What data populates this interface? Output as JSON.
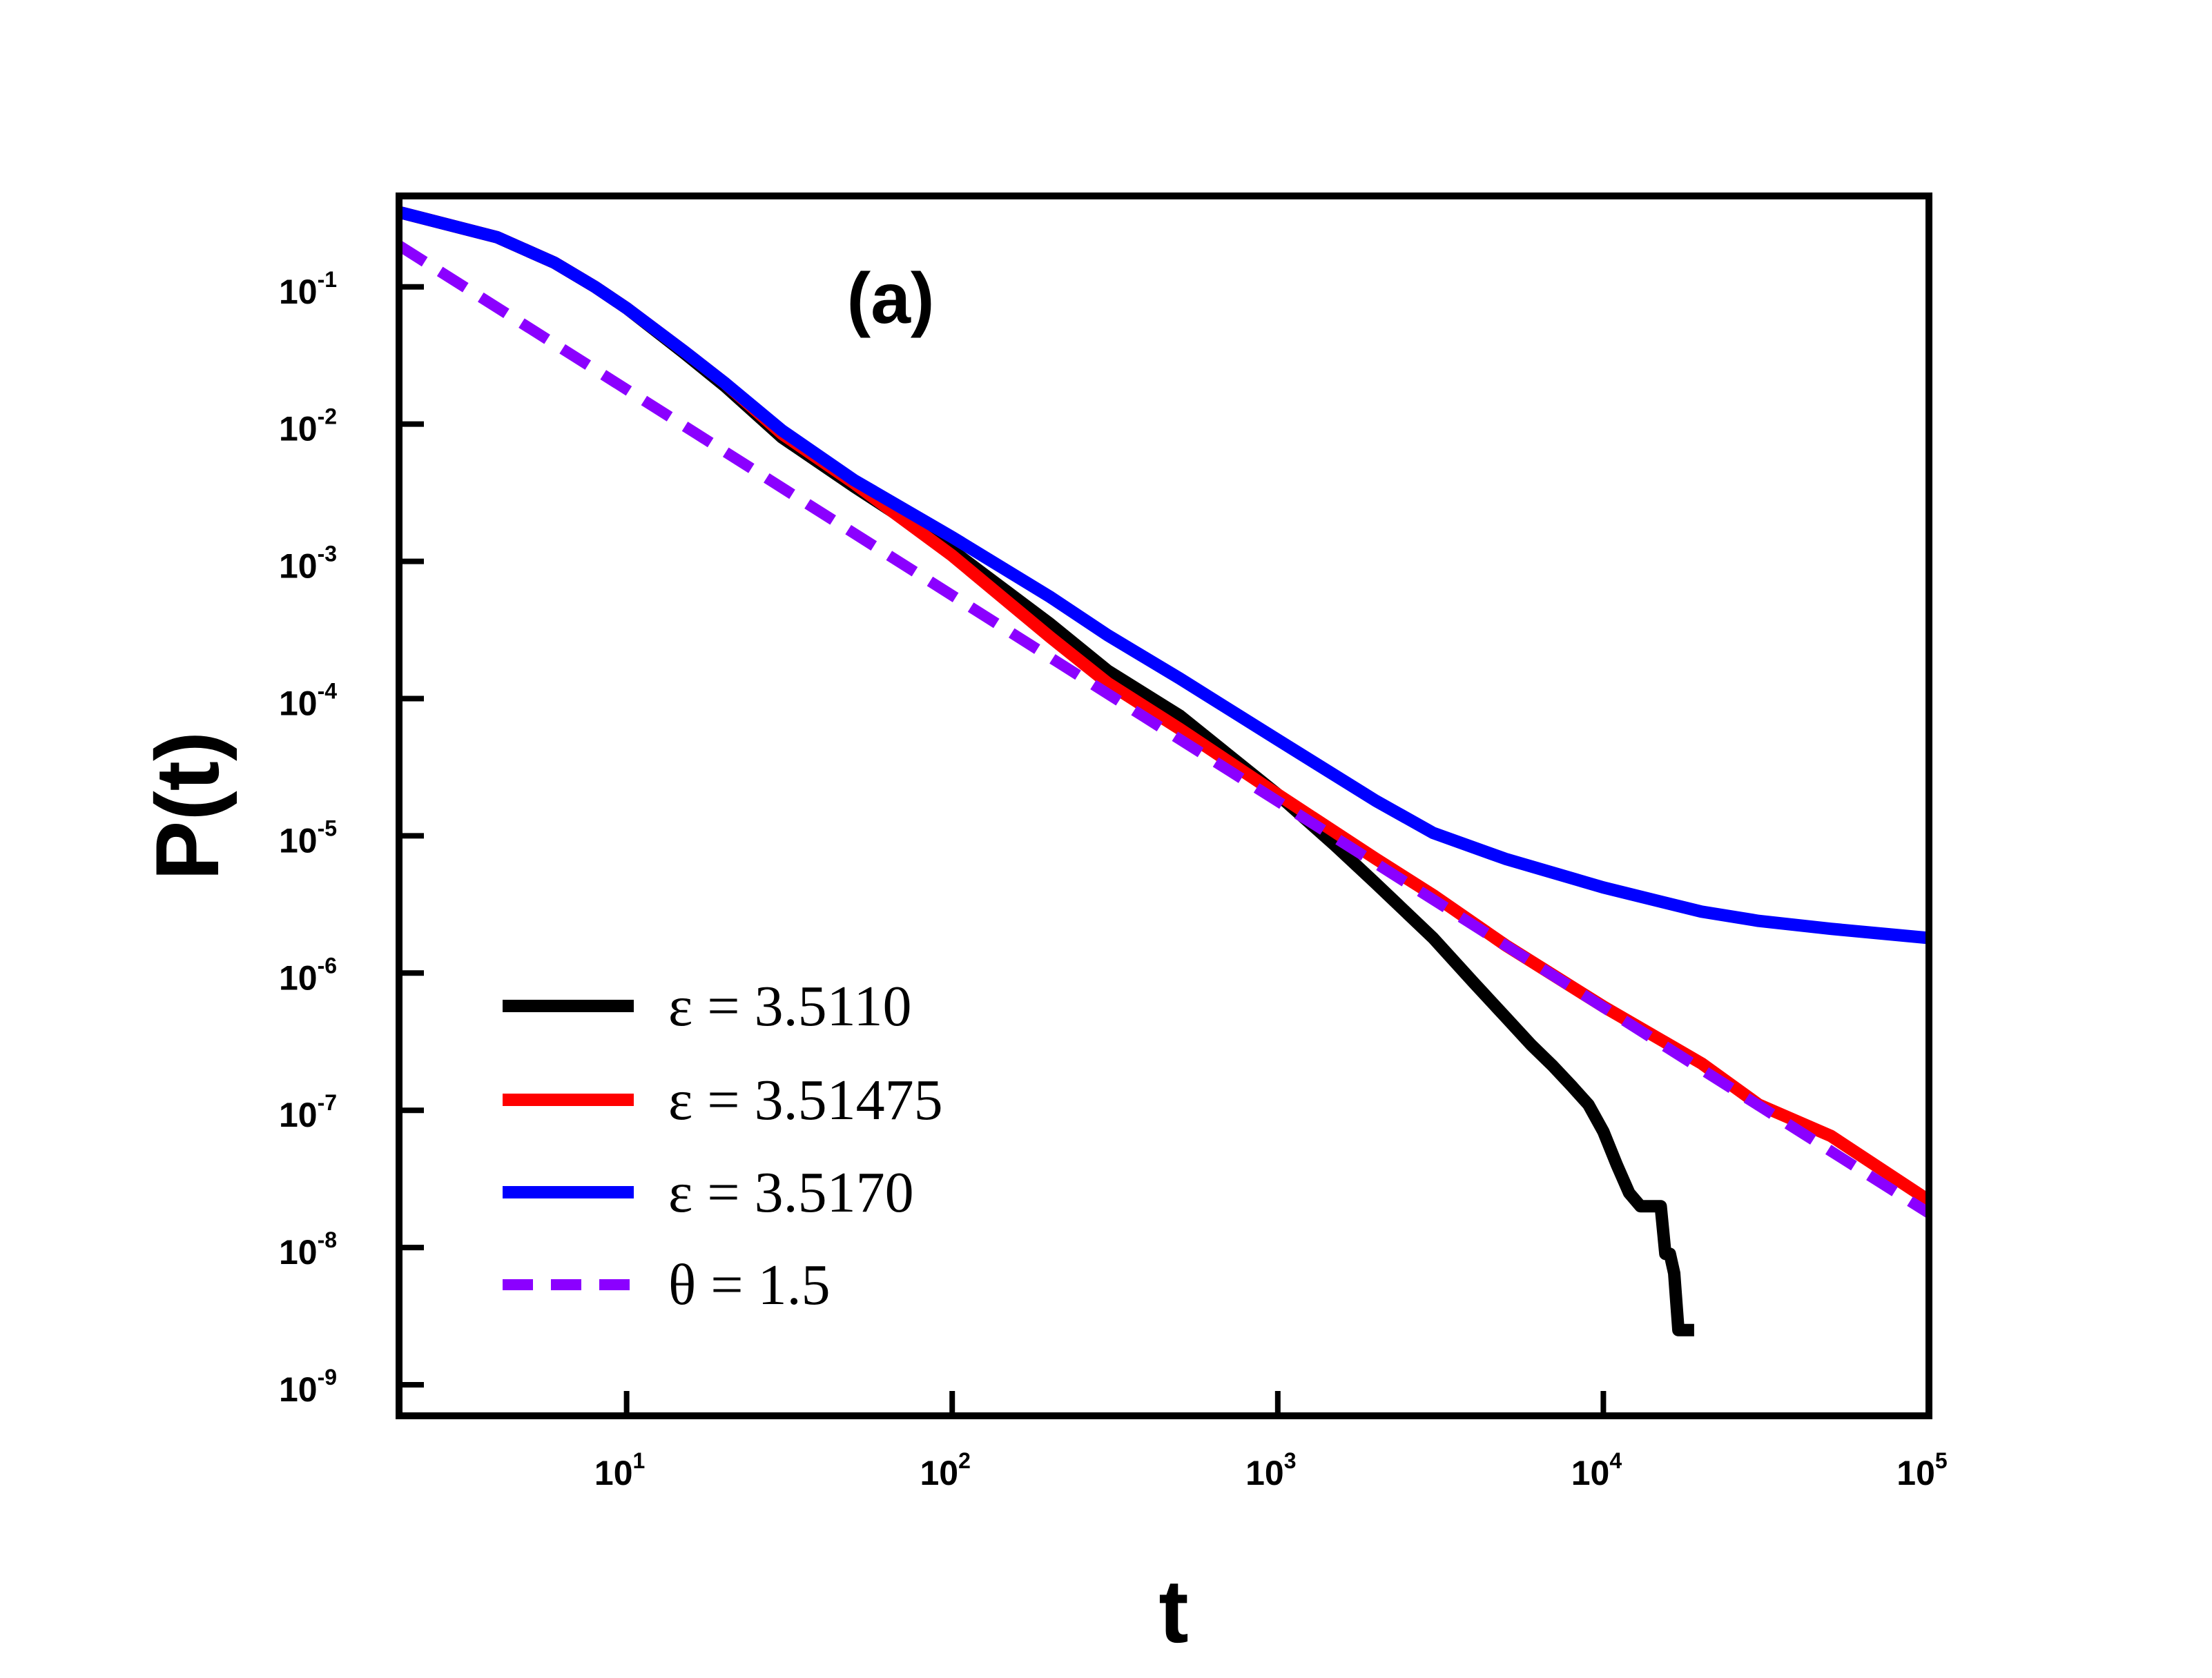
{
  "chart_data": {
    "type": "line",
    "title": "",
    "panel_label": "(a)",
    "xlabel": "t",
    "ylabel": "P(t)",
    "xscale": "log",
    "yscale": "log",
    "xlim": [
      2,
      100000
    ],
    "ylim": [
      1e-09,
      0.4
    ],
    "grid": false,
    "legend_position": "bottom-left",
    "x_ticks": [
      {
        "base": "10",
        "exp": "1",
        "value": 10
      },
      {
        "base": "10",
        "exp": "2",
        "value": 100
      },
      {
        "base": "10",
        "exp": "3",
        "value": 1000
      },
      {
        "base": "10",
        "exp": "4",
        "value": 10000
      },
      {
        "base": "10",
        "exp": "5",
        "value": 100000
      }
    ],
    "y_ticks": [
      {
        "base": "10",
        "exp": "-1",
        "value": 0.1
      },
      {
        "base": "10",
        "exp": "-2",
        "value": 0.01
      },
      {
        "base": "10",
        "exp": "-3",
        "value": 0.001
      },
      {
        "base": "10",
        "exp": "-4",
        "value": 0.0001
      },
      {
        "base": "10",
        "exp": "-5",
        "value": 1e-05
      },
      {
        "base": "10",
        "exp": "-6",
        "value": 1e-06
      },
      {
        "base": "10",
        "exp": "-7",
        "value": 1e-07
      },
      {
        "base": "10",
        "exp": "-8",
        "value": 1e-08
      },
      {
        "base": "10",
        "exp": "-9",
        "value": 1e-09
      }
    ],
    "series": [
      {
        "name": "ε = 3.5110",
        "color": "#000000",
        "dashed": false,
        "x": [
          2,
          4,
          6,
          8,
          10,
          15,
          20,
          30,
          50,
          100,
          200,
          300,
          500,
          1000,
          1500,
          2000,
          3000,
          4000,
          5000,
          6000,
          7000,
          8000,
          9000,
          10000,
          11000,
          12000,
          13000,
          15000,
          15500,
          16000,
          16500,
          17000,
          19000
        ],
        "y": [
          0.35,
          0.23,
          0.15,
          0.1,
          0.07,
          0.033,
          0.019,
          0.008,
          0.0035,
          0.0012,
          0.00035,
          0.00016,
          7.5e-05,
          2e-05,
          8.5e-06,
          4.5e-06,
          1.8e-06,
          8.5e-07,
          4.8e-07,
          3e-07,
          2.1e-07,
          1.5e-07,
          1.1e-07,
          7e-08,
          4e-08,
          2.5e-08,
          2e-08,
          2e-08,
          9e-09,
          9e-09,
          6.5e-09,
          2.5e-09,
          2.5e-09
        ]
      },
      {
        "name": "ε = 3.51475",
        "color": "#ff0000",
        "dashed": false,
        "x": [
          2,
          4,
          6,
          8,
          10,
          15,
          20,
          30,
          50,
          100,
          200,
          300,
          500,
          1000,
          2000,
          3000,
          5000,
          10000,
          20000,
          30000,
          50000,
          100000
        ],
        "y": [
          0.35,
          0.23,
          0.15,
          0.1,
          0.07,
          0.034,
          0.02,
          0.0085,
          0.0037,
          0.0011,
          0.00028,
          0.00013,
          6e-05,
          2e-05,
          6.8e-06,
          3.7e-06,
          1.6e-06,
          5.7e-07,
          2.2e-07,
          1.1e-07,
          6.5e-08,
          2.2e-08
        ]
      },
      {
        "name": "ε = 3.5170",
        "color": "#0000ff",
        "dashed": false,
        "x": [
          2,
          4,
          6,
          8,
          10,
          15,
          20,
          30,
          50,
          100,
          200,
          300,
          500,
          1000,
          2000,
          3000,
          5000,
          10000,
          20000,
          30000,
          50000,
          100000
        ],
        "y": [
          0.35,
          0.23,
          0.15,
          0.1,
          0.07,
          0.034,
          0.02,
          0.009,
          0.0039,
          0.0015,
          0.00055,
          0.00029,
          0.00014,
          5e-05,
          1.8e-05,
          1.05e-05,
          6.8e-06,
          4.2e-06,
          2.8e-06,
          2.4e-06,
          2.1e-06,
          1.8e-06
        ]
      },
      {
        "name": "θ = 1.5",
        "color": "#8b00ff",
        "dashed": true,
        "x": [
          2,
          100000
        ],
        "y": [
          0.2,
          1.78e-08
        ]
      }
    ]
  }
}
